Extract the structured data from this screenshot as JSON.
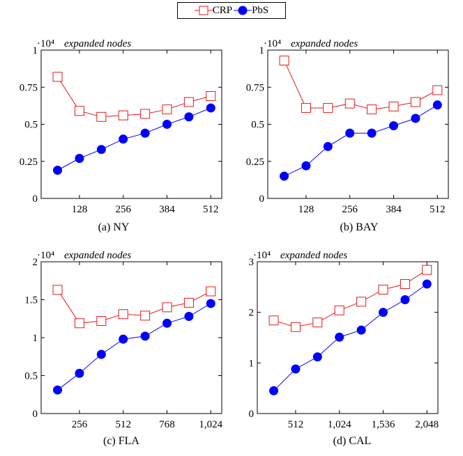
{
  "legend": [
    {
      "name": "CRP",
      "color": "#e41a1c",
      "marker": "square-open"
    },
    {
      "name": "PbS",
      "color": "#0000ff",
      "marker": "circle-filled"
    }
  ],
  "chart_data": [
    {
      "type": "line",
      "panel": "NY",
      "caption": "(a) NY",
      "title": "expanded nodes",
      "y_multiplier": "·10⁴",
      "xlim": [
        16,
        544
      ],
      "ylim": [
        0,
        1
      ],
      "x_ticks": [
        128,
        256,
        384,
        512
      ],
      "x_tick_labels": [
        "128",
        "256",
        "384",
        "512"
      ],
      "y_ticks": [
        0,
        0.25,
        0.5,
        0.75,
        1
      ],
      "y_tick_labels": [
        "0",
        "0.25",
        "0.5",
        "0.75",
        "1"
      ],
      "x": [
        64,
        128,
        192,
        256,
        320,
        384,
        448,
        512
      ],
      "series": [
        {
          "name": "CRP",
          "values": [
            0.82,
            0.59,
            0.55,
            0.56,
            0.57,
            0.6,
            0.65,
            0.69
          ]
        },
        {
          "name": "PbS",
          "values": [
            0.19,
            0.27,
            0.33,
            0.4,
            0.44,
            0.5,
            0.55,
            0.61
          ]
        }
      ]
    },
    {
      "type": "line",
      "panel": "BAY",
      "caption": "(b) BAY",
      "title": "expanded nodes",
      "y_multiplier": "·10⁴",
      "xlim": [
        16,
        544
      ],
      "ylim": [
        0,
        1
      ],
      "x_ticks": [
        128,
        256,
        384,
        512
      ],
      "x_tick_labels": [
        "128",
        "256",
        "384",
        "512"
      ],
      "y_ticks": [
        0,
        0.25,
        0.5,
        0.75,
        1
      ],
      "y_tick_labels": [
        "0",
        "0.25",
        "0.5",
        "0.75",
        "1"
      ],
      "x": [
        64,
        128,
        192,
        256,
        320,
        384,
        448,
        512
      ],
      "series": [
        {
          "name": "CRP",
          "values": [
            0.93,
            0.61,
            0.61,
            0.64,
            0.6,
            0.62,
            0.65,
            0.73
          ]
        },
        {
          "name": "PbS",
          "values": [
            0.15,
            0.22,
            0.35,
            0.44,
            0.44,
            0.49,
            0.54,
            0.63
          ]
        }
      ]
    },
    {
      "type": "line",
      "panel": "FLA",
      "caption": "(c) FLA",
      "title": "expanded nodes",
      "y_multiplier": "·10⁴",
      "xlim": [
        32,
        1088
      ],
      "ylim": [
        0,
        2
      ],
      "x_ticks": [
        256,
        512,
        768,
        1024
      ],
      "x_tick_labels": [
        "256",
        "512",
        "768",
        "1,024"
      ],
      "y_ticks": [
        0,
        0.5,
        1,
        1.5,
        2
      ],
      "y_tick_labels": [
        "0",
        "0.5",
        "1",
        "1.5",
        "2"
      ],
      "x": [
        128,
        256,
        384,
        512,
        640,
        768,
        896,
        1024
      ],
      "series": [
        {
          "name": "CRP",
          "values": [
            1.63,
            1.19,
            1.22,
            1.31,
            1.29,
            1.4,
            1.46,
            1.61
          ]
        },
        {
          "name": "PbS",
          "values": [
            0.31,
            0.53,
            0.78,
            0.98,
            1.02,
            1.19,
            1.28,
            1.45
          ]
        }
      ]
    },
    {
      "type": "line",
      "panel": "CAL",
      "caption": "(d) CAL",
      "title": "expanded nodes",
      "y_multiplier": "·10⁴",
      "xlim": [
        64,
        2176
      ],
      "ylim": [
        0,
        3
      ],
      "x_ticks": [
        512,
        1024,
        1536,
        2048
      ],
      "x_tick_labels": [
        "512",
        "1,024",
        "1,536",
        "2,048"
      ],
      "y_ticks": [
        0,
        1,
        2,
        3
      ],
      "y_tick_labels": [
        "0",
        "1",
        "2",
        "3"
      ],
      "x": [
        256,
        512,
        768,
        1024,
        1280,
        1536,
        1792,
        2048
      ],
      "series": [
        {
          "name": "CRP",
          "values": [
            1.84,
            1.71,
            1.8,
            2.04,
            2.21,
            2.45,
            2.56,
            2.84
          ]
        },
        {
          "name": "PbS",
          "values": [
            0.45,
            0.88,
            1.12,
            1.51,
            1.65,
            2.0,
            2.25,
            2.56
          ]
        }
      ]
    }
  ]
}
